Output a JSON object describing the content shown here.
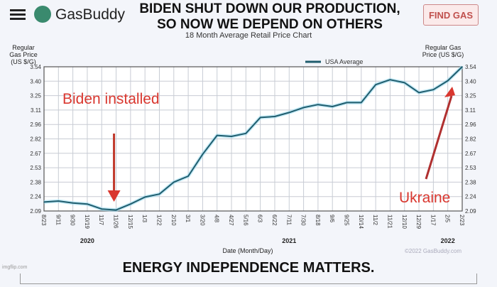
{
  "header": {
    "logo_text": "GasBuddy",
    "headline_line1": "BIDEN SHUT DOWN OUR PRODUCTION,",
    "headline_line2": "SO NOW WE DEPEND ON OTHERS",
    "find_gas_label": "FIND GAS"
  },
  "footer": {
    "caption": "ENERGY INDEPENDENCE MATTERS.",
    "watermark": "imgflip.com"
  },
  "colors": {
    "line": "#1f5d6e",
    "glow": "#9fdcf0",
    "annotation": "#d9372f",
    "grid": "#c8ccd4"
  },
  "chart_data": {
    "type": "line",
    "title": "18 Month Average Retail Price Chart",
    "ylabel_left": "Regular Gas Price (US $/G)",
    "ylabel_right": "Regular Gas Price (US $/G)",
    "xlabel": "Date (Month/Day)",
    "legend": "USA Average",
    "legend_position": "top-right",
    "copyright": "©2022 GasBuddy.com",
    "ylim": [
      2.09,
      3.54
    ],
    "yticks": [
      "3.54",
      "3.40",
      "3.25",
      "3.11",
      "2.96",
      "2.82",
      "2.67",
      "2.53",
      "2.38",
      "2.24",
      "2.09"
    ],
    "categories": [
      "8/23",
      "9/11",
      "9/30",
      "10/19",
      "11/7",
      "11/26",
      "12/15",
      "1/3",
      "1/22",
      "2/10",
      "3/1",
      "3/20",
      "4/8",
      "4/27",
      "5/16",
      "6/3",
      "6/22",
      "7/11",
      "7/30",
      "8/18",
      "9/6",
      "9/25",
      "10/14",
      "11/2",
      "11/21",
      "12/10",
      "12/29",
      "1/17",
      "2/5",
      "2/23"
    ],
    "year_labels": [
      {
        "label": "2020",
        "at": "10/19"
      },
      {
        "label": "2021",
        "at": "7/11"
      },
      {
        "label": "2022",
        "at": "2/5"
      }
    ],
    "grid": true,
    "series": [
      {
        "name": "USA Average",
        "values": [
          2.18,
          2.19,
          2.17,
          2.16,
          2.11,
          2.1,
          2.16,
          2.23,
          2.26,
          2.38,
          2.44,
          2.66,
          2.85,
          2.84,
          2.87,
          3.03,
          3.04,
          3.08,
          3.13,
          3.16,
          3.14,
          3.18,
          3.18,
          3.36,
          3.41,
          3.38,
          3.28,
          3.31,
          3.4,
          3.54
        ]
      }
    ],
    "annotations": [
      {
        "text": "Biden installed",
        "points_to": "11/26",
        "arrow": "down"
      },
      {
        "text": "Ukraine",
        "points_to": "2/23",
        "arrow": "up-right"
      }
    ]
  }
}
